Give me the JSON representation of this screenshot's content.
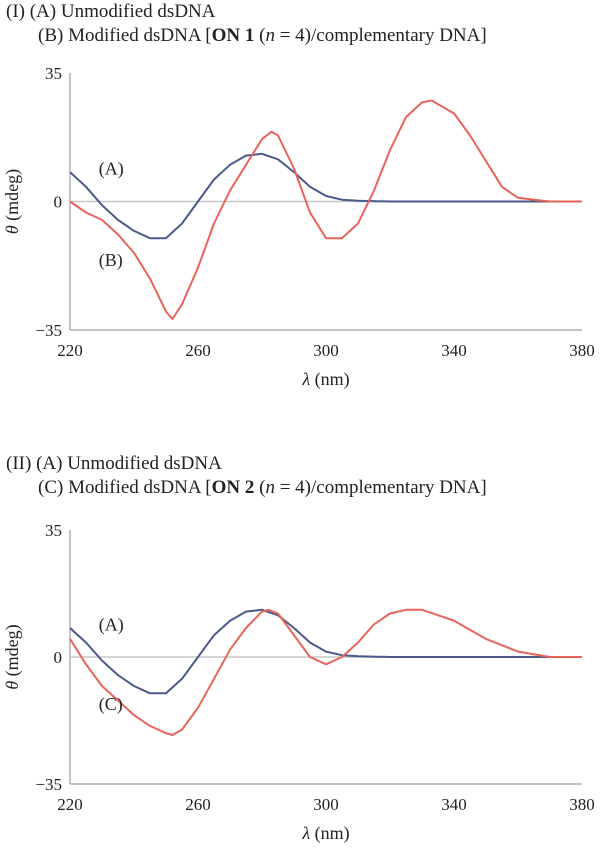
{
  "panels": [
    {
      "label": "(I)",
      "lines": [
        {
          "id": "A",
          "text": "(A) Unmodified dsDNA"
        },
        {
          "id": "B",
          "prefix": "(B) Modified dsDNA [",
          "strong": "ON 1",
          "mid": " (",
          "ital": "n",
          "suffix": " = 4)/complementary DNA]"
        }
      ]
    },
    {
      "label": "(II)",
      "lines": [
        {
          "id": "A",
          "text": "(A) Unmodified dsDNA"
        },
        {
          "id": "C",
          "prefix": "(C) Modified dsDNA [",
          "strong": "ON 2",
          "mid": " (",
          "ital": "n",
          "suffix": " = 4)/complementary DNA]"
        }
      ]
    }
  ],
  "colors": {
    "unmodified": "#4a5a8a",
    "modified": "#e8645a",
    "zero_line": "#c8c8c8",
    "axis": "#8a8a8a"
  },
  "chart_data": [
    {
      "type": "line",
      "title": "(I)",
      "xlabel": "λ (nm)",
      "ylabel": "θ (mdeg)",
      "xlim": [
        220,
        380
      ],
      "ylim": [
        -35,
        35
      ],
      "xticks": [
        220,
        260,
        300,
        340,
        380
      ],
      "yticks": [
        -35,
        0,
        35
      ],
      "ytick_labels": [
        "−35",
        "0",
        "35"
      ],
      "grid": false,
      "series": [
        {
          "name": "(A)",
          "color": "#4a5a8a",
          "label_at": [
            224,
            9
          ],
          "x": [
            220,
            225,
            230,
            235,
            240,
            245,
            250,
            255,
            260,
            265,
            270,
            275,
            280,
            285,
            290,
            295,
            300,
            305,
            310,
            320,
            340,
            360,
            380
          ],
          "y": [
            8,
            4,
            -1,
            -5,
            -8,
            -10,
            -10,
            -6,
            0,
            6,
            10,
            12.5,
            13,
            11.5,
            8,
            4,
            1.5,
            0.5,
            0.2,
            0,
            0,
            0,
            0
          ]
        },
        {
          "name": "(B)",
          "color": "#e8645a",
          "label_at": [
            224,
            -16
          ],
          "x": [
            220,
            225,
            230,
            235,
            240,
            245,
            250,
            252,
            255,
            260,
            265,
            270,
            275,
            280,
            283,
            285,
            290,
            295,
            300,
            305,
            310,
            315,
            320,
            325,
            330,
            333,
            340,
            345,
            350,
            355,
            360,
            365,
            370,
            380
          ],
          "y": [
            0,
            -3,
            -5,
            -9,
            -14,
            -21,
            -30,
            -32,
            -28,
            -18,
            -6,
            3,
            10,
            17,
            19,
            18,
            9,
            -3,
            -10,
            -10,
            -6,
            3,
            14,
            23,
            27,
            27.5,
            24,
            18,
            11,
            4,
            1,
            0.5,
            0,
            0
          ]
        }
      ]
    },
    {
      "type": "line",
      "title": "(II)",
      "xlabel": "λ (nm)",
      "ylabel": "θ (mdeg)",
      "xlim": [
        220,
        380
      ],
      "ylim": [
        -35,
        35
      ],
      "xticks": [
        220,
        260,
        300,
        340,
        380
      ],
      "yticks": [
        -35,
        0,
        35
      ],
      "ytick_labels": [
        "−35",
        "0",
        "35"
      ],
      "grid": false,
      "series": [
        {
          "name": "(A)",
          "color": "#4a5a8a",
          "label_at": [
            224,
            9
          ],
          "x": [
            220,
            225,
            230,
            235,
            240,
            245,
            250,
            255,
            260,
            265,
            270,
            275,
            280,
            285,
            290,
            295,
            300,
            305,
            310,
            320,
            340,
            360,
            380
          ],
          "y": [
            8,
            4,
            -1,
            -5,
            -8,
            -10,
            -10,
            -6,
            0,
            6,
            10,
            12.5,
            13,
            11.5,
            8,
            4,
            1.5,
            0.5,
            0.2,
            0,
            0,
            0,
            0
          ]
        },
        {
          "name": "(C)",
          "color": "#e8645a",
          "label_at": [
            224,
            -13
          ],
          "x": [
            220,
            225,
            230,
            235,
            240,
            245,
            250,
            252,
            255,
            260,
            265,
            270,
            275,
            280,
            282,
            285,
            290,
            295,
            300,
            305,
            310,
            315,
            320,
            325,
            330,
            340,
            350,
            360,
            370,
            380
          ],
          "y": [
            5,
            -2,
            -8,
            -12,
            -16,
            -19,
            -21,
            -21.5,
            -20,
            -14,
            -6,
            2,
            8,
            12.5,
            13,
            12,
            6,
            0,
            -2,
            0,
            4,
            9,
            12,
            13,
            13,
            10,
            5,
            1.5,
            0,
            0
          ]
        }
      ]
    }
  ]
}
